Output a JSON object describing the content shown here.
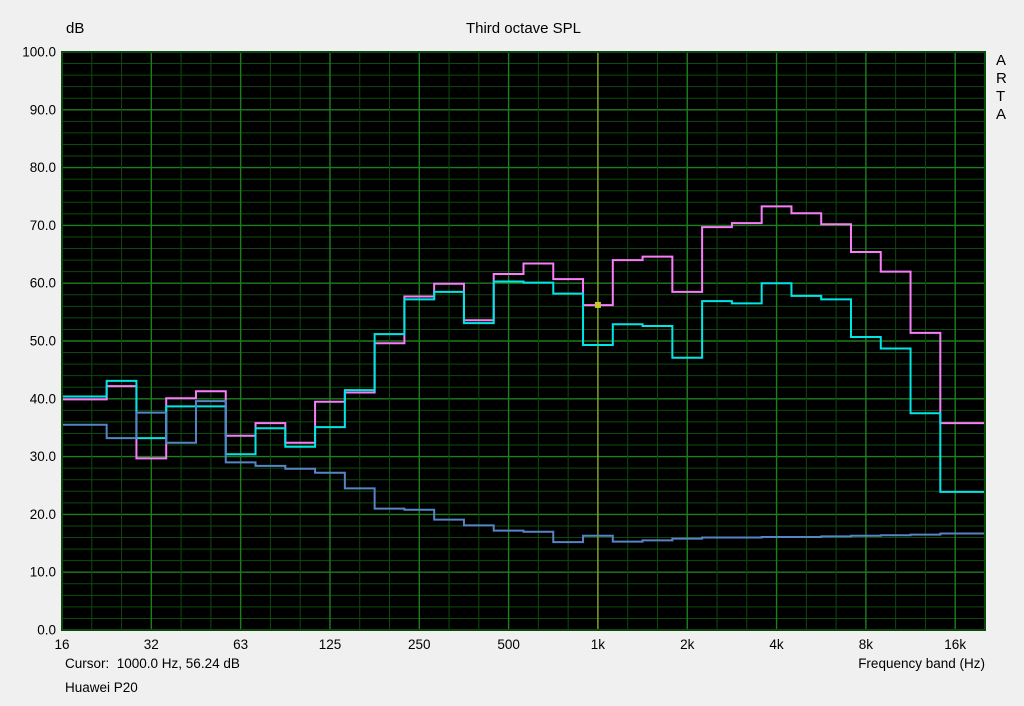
{
  "title": "Third octave SPL",
  "y_axis": {
    "label": "dB",
    "tick_labels": [
      "100.0",
      "90.0",
      "80.0",
      "70.0",
      "60.0",
      "50.0",
      "40.0",
      "30.0",
      "20.0",
      "10.0",
      "0.0"
    ]
  },
  "x_axis": {
    "label": "Frequency band (Hz)",
    "tick_labels": [
      "16",
      "32",
      "63",
      "125",
      "250",
      "500",
      "1k",
      "2k",
      "4k",
      "8k",
      "16k"
    ]
  },
  "footer": {
    "cursor_text": "Cursor:  1000.0 Hz, 56.24 dB",
    "device_name": "Huawei P20"
  },
  "watermark": "ARTA",
  "colors": {
    "outer_background": "#F0F0F0",
    "plot_background": "#000000",
    "plot_border": "#0A4A0A",
    "grid_minor": "#0E4A0E",
    "grid_major": "#1E7E1E",
    "cursor_line": "#B8B830",
    "cursor_marker": "#C8C830",
    "text": "#000000"
  },
  "chart_data": {
    "type": "line",
    "subtype": "third-octave step spectrum",
    "title": "Third octave SPL",
    "xlabel": "Frequency band (Hz)",
    "ylabel": "dB",
    "ylim": [
      0,
      100
    ],
    "y_major_step": 10,
    "y_minor_step": 2,
    "grid": "green on black, minor every 2 dB / every band, major every 10 dB / octave",
    "legend_position": "none",
    "categories": [
      "16",
      "20",
      "25",
      "31.5",
      "40",
      "50",
      "63",
      "80",
      "100",
      "125",
      "160",
      "200",
      "250",
      "315",
      "400",
      "500",
      "630",
      "800",
      "1000",
      "1250",
      "1600",
      "2000",
      "2500",
      "3150",
      "4000",
      "5000",
      "6300",
      "8000",
      "10000",
      "12500",
      "16000"
    ],
    "series": [
      {
        "name": "pink-spl-curve",
        "color": "#F97DF9",
        "values": [
          39.9,
          39.9,
          42.2,
          29.7,
          40.1,
          41.3,
          33.6,
          35.8,
          32.4,
          39.5,
          41.1,
          49.6,
          57.7,
          59.9,
          53.6,
          61.6,
          63.4,
          60.7,
          56.2,
          64.0,
          64.6,
          58.5,
          69.7,
          70.4,
          73.3,
          72.1,
          70.2,
          65.4,
          62.0,
          51.4,
          35.8
        ]
      },
      {
        "name": "cyan-spl-curve",
        "color": "#00E6E6",
        "values": [
          40.4,
          40.4,
          43.1,
          33.2,
          38.7,
          38.7,
          30.4,
          34.9,
          31.7,
          35.1,
          41.5,
          51.2,
          57.2,
          58.5,
          53.1,
          60.3,
          60.1,
          58.2,
          49.3,
          52.9,
          52.6,
          47.1,
          56.9,
          56.5,
          60.0,
          57.8,
          57.2,
          50.7,
          48.7,
          37.5,
          23.9
        ]
      },
      {
        "name": "noise-floor-curve",
        "color": "#5585C5",
        "values": [
          35.5,
          35.5,
          33.2,
          37.6,
          32.4,
          39.6,
          29.0,
          28.4,
          27.9,
          27.2,
          24.5,
          21.0,
          20.8,
          19.1,
          18.1,
          17.2,
          17.0,
          15.2,
          16.3,
          15.3,
          15.5,
          15.8,
          16.0,
          16.0,
          16.1,
          16.1,
          16.2,
          16.3,
          16.4,
          16.5,
          16.7
        ]
      }
    ],
    "cursor": {
      "band": "1000",
      "band_index": 18,
      "frequency_hz": 1000.0,
      "value_db": 56.24
    },
    "x_major_tick_labels": [
      "16",
      "32",
      "63",
      "125",
      "250",
      "500",
      "1k",
      "2k",
      "4k",
      "8k",
      "16k"
    ]
  }
}
